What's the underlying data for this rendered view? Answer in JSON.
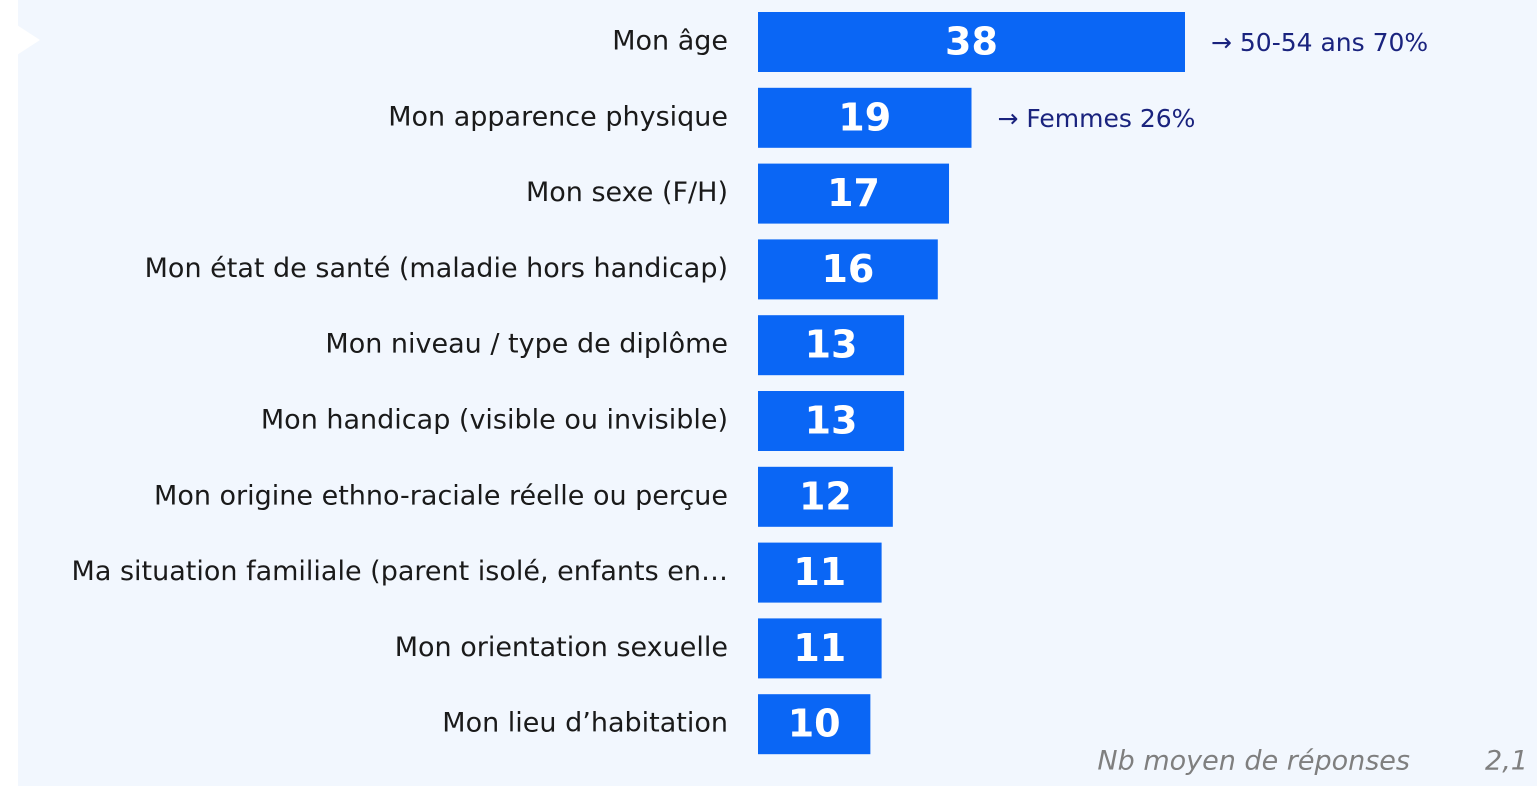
{
  "chart_data": {
    "type": "bar",
    "orientation": "horizontal",
    "color": "#0a66f5",
    "categories": [
      "Mon âge",
      "Mon apparence physique",
      "Mon sexe (F/H)",
      "Mon état de santé (maladie hors handicap)",
      "Mon niveau / type de diplôme",
      "Mon handicap (visible ou invisible)",
      "Mon origine ethno-raciale réelle ou perçue",
      "Ma situation familiale (parent isolé, enfants en…",
      "Mon orientation sexuelle",
      "Mon lieu d’habitation"
    ],
    "values": [
      38,
      19,
      17,
      16,
      13,
      13,
      12,
      11,
      11,
      10
    ],
    "annotations": [
      "→ 50-54 ans 70%",
      "→ Femmes 26%"
    ],
    "footer": {
      "label": "Nb moyen de réponses",
      "value": "2,1"
    }
  }
}
